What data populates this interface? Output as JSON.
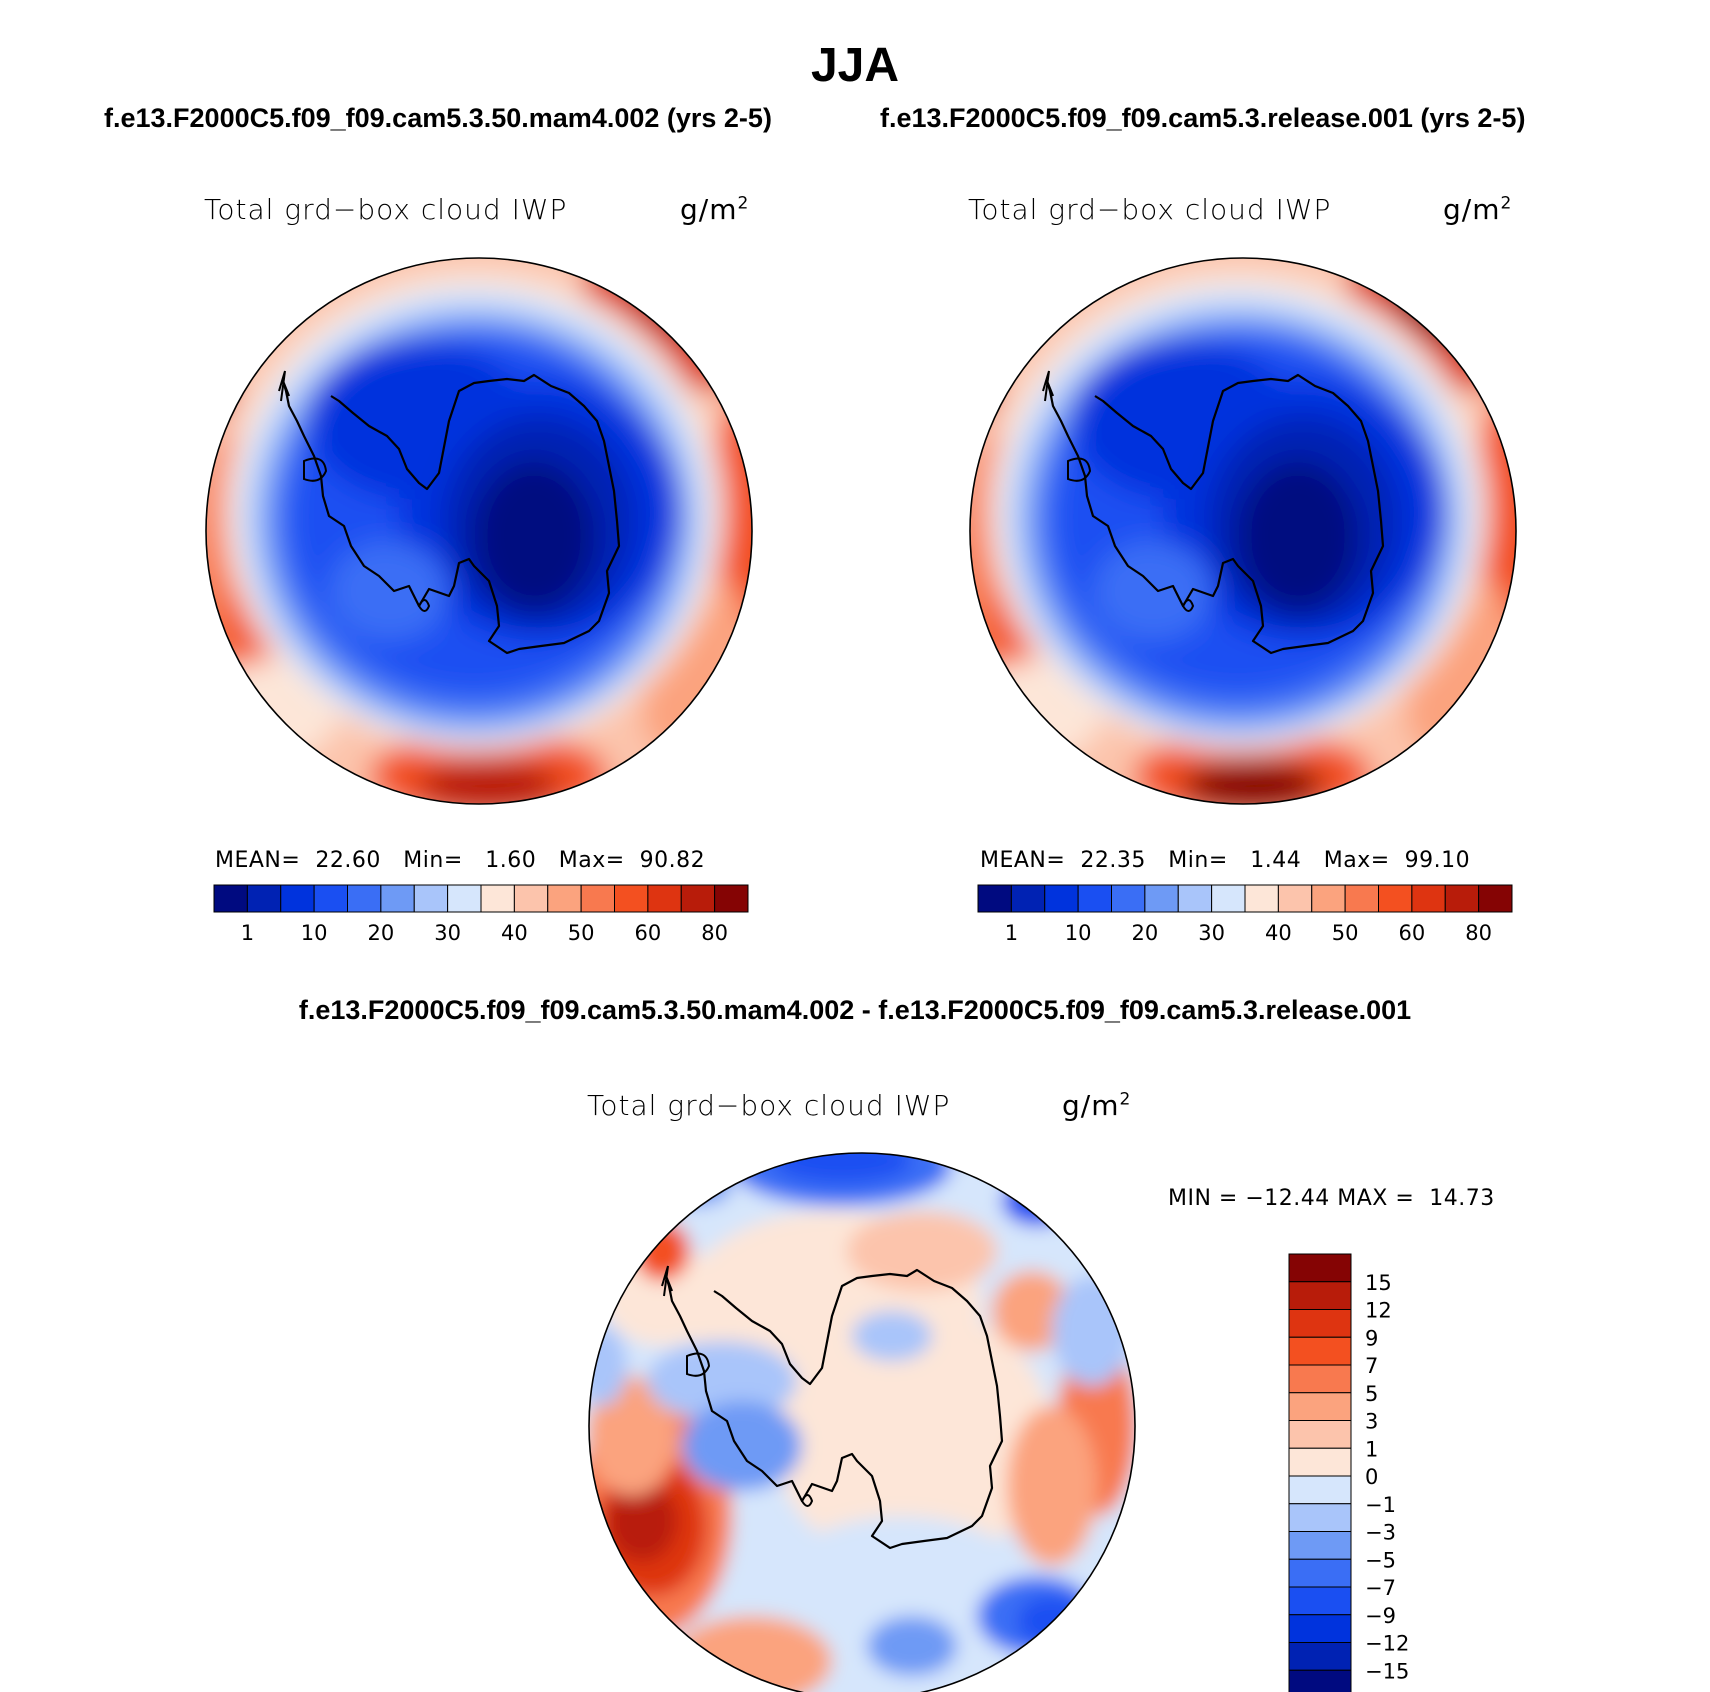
{
  "figure": {
    "title": "JJA",
    "left_case": "f.e13.F2000C5.f09_f09.cam5.3.50.mam4.002 (yrs 2-5)",
    "right_case": "f.e13.F2000C5.f09_f09.cam5.3.release.001 (yrs 2-5)",
    "diff_title": "f.e13.F2000C5.f09_f09.cam5.3.50.mam4.002 - f.e13.F2000C5.f09_f09.cam5.3.release.001"
  },
  "colors": {
    "abs_scale": [
      "#000a80",
      "#0022b3",
      "#0033dd",
      "#1a4ff2",
      "#3a6ef5",
      "#6e9af5",
      "#a9c5fa",
      "#d6e6fc",
      "#fde6d8",
      "#fcc4ac",
      "#fba37e",
      "#f8794f",
      "#f35020",
      "#de3411",
      "#b81c0a",
      "#850404"
    ],
    "diff_scale": [
      "#000a80",
      "#0022b3",
      "#0033dd",
      "#1a4ff2",
      "#3a6ef5",
      "#6e9af5",
      "#a9c5fa",
      "#d6e6fc",
      "#fde6d8",
      "#fcc4ac",
      "#fba37e",
      "#f8794f",
      "#f35020",
      "#de3411",
      "#b81c0a",
      "#850404"
    ],
    "coast": "#000000"
  },
  "chart_data": [
    {
      "type": "heatmap",
      "projection": "south-polar-stereographic",
      "title": "Total grd−box cloud IWP",
      "units": "g/m",
      "units_exp": "2",
      "stats": {
        "mean_label": "MEAN=",
        "mean": "22.60",
        "min_label": "Min=",
        "min": "1.60",
        "max_label": "Max=",
        "max": "90.82"
      },
      "levels": [
        "1",
        "10",
        "20",
        "30",
        "40",
        "50",
        "60",
        "80"
      ],
      "field_description": "low IWP over Antarctica, high values in outer ring"
    },
    {
      "type": "heatmap",
      "projection": "south-polar-stereographic",
      "title": "Total grd−box cloud IWP",
      "units": "g/m",
      "units_exp": "2",
      "stats": {
        "mean_label": "MEAN=",
        "mean": "22.35",
        "min_label": "Min=",
        "min": "1.44",
        "max_label": "Max=",
        "max": "99.10"
      },
      "levels": [
        "1",
        "10",
        "20",
        "30",
        "40",
        "50",
        "60",
        "80"
      ]
    },
    {
      "type": "heatmap",
      "projection": "south-polar-stereographic",
      "title": "Total grd−box cloud IWP",
      "units": "g/m",
      "units_exp": "2",
      "stats_text": "MIN = −12.44 MAX =  14.73",
      "levels": [
        "15",
        "12",
        "9",
        "7",
        "5",
        "3",
        "1",
        "0",
        "−1",
        "−3",
        "−5",
        "−7",
        "−9",
        "−12",
        "−15"
      ]
    }
  ]
}
